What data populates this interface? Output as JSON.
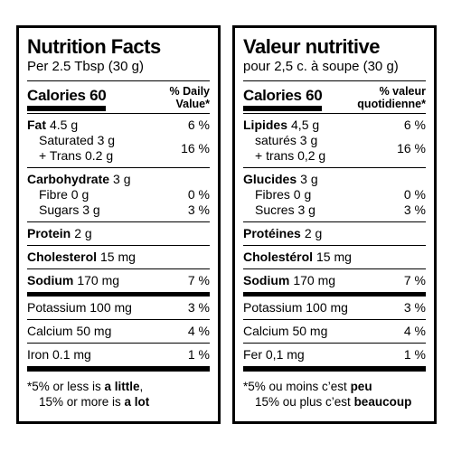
{
  "panels": [
    {
      "title": "Nutrition Facts",
      "serving": "Per 2.5 Tbsp (30 g)",
      "calories": "Calories 60",
      "dv_heading": [
        "% Daily",
        "Value*"
      ],
      "groups": [
        {
          "rows": [
            {
              "name": "Fat",
              "amount": "4.5 g",
              "dv": "6 %"
            },
            {
              "lines": [
                "Saturated 3 g",
                "+ Trans 0.2 g"
              ],
              "dv": "16 %"
            }
          ]
        },
        {
          "rows": [
            {
              "name": "Carbohydrate",
              "amount": "3 g"
            },
            {
              "lines": [
                "Fibre 0 g"
              ],
              "dv": "0 %"
            },
            {
              "lines": [
                "Sugars 3 g"
              ],
              "dv": "3 %"
            }
          ]
        },
        {
          "rows": [
            {
              "name": "Protein",
              "amount": "2 g"
            }
          ]
        },
        {
          "rows": [
            {
              "name": "Cholesterol",
              "amount": "15 mg"
            }
          ]
        },
        {
          "rows": [
            {
              "name": "Sodium",
              "amount": "170 mg",
              "dv": "7 %"
            }
          ]
        },
        {
          "rows": [
            {
              "text": "Potassium 100 mg",
              "dv": "3 %"
            }
          ]
        },
        {
          "rows": [
            {
              "text": "Calcium 50 mg",
              "dv": "4 %"
            }
          ]
        },
        {
          "rows": [
            {
              "text": "Iron 0.1 mg",
              "dv": "1 %"
            }
          ]
        }
      ],
      "footnote": [
        [
          {
            "text": "*5% or less is "
          },
          {
            "text": "a little",
            "bold": true
          },
          {
            "text": ","
          }
        ],
        [
          {
            "text": "15% or more is "
          },
          {
            "text": "a lot",
            "bold": true
          }
        ]
      ]
    },
    {
      "title": "Valeur nutritive",
      "serving": "pour 2,5 c. à soupe (30 g)",
      "calories": "Calories 60",
      "dv_heading": [
        "% valeur",
        "quotidienne*"
      ],
      "groups": [
        {
          "rows": [
            {
              "name": "Lipides",
              "amount": "4,5 g",
              "dv": "6 %"
            },
            {
              "lines": [
                "saturés 3 g",
                "+ trans 0,2 g"
              ],
              "dv": "16 %"
            }
          ]
        },
        {
          "rows": [
            {
              "name": "Glucides",
              "amount": "3 g"
            },
            {
              "lines": [
                "Fibres 0 g"
              ],
              "dv": "0 %"
            },
            {
              "lines": [
                "Sucres 3 g"
              ],
              "dv": "3 %"
            }
          ]
        },
        {
          "rows": [
            {
              "name": "Protéines",
              "amount": "2 g"
            }
          ]
        },
        {
          "rows": [
            {
              "name": "Cholestérol",
              "amount": "15 mg"
            }
          ]
        },
        {
          "rows": [
            {
              "name": "Sodium",
              "amount": "170 mg",
              "dv": "7 %"
            }
          ]
        },
        {
          "rows": [
            {
              "text": "Potassium 100 mg",
              "dv": "3 %"
            }
          ]
        },
        {
          "rows": [
            {
              "text": "Calcium 50 mg",
              "dv": "4 %"
            }
          ]
        },
        {
          "rows": [
            {
              "text": "Fer 0,1 mg",
              "dv": "1 %"
            }
          ]
        }
      ],
      "footnote": [
        [
          {
            "text": "*5% ou moins c’est "
          },
          {
            "text": "peu",
            "bold": true
          }
        ],
        [
          {
            "text": "15% ou plus c’est "
          },
          {
            "text": "beaucoup",
            "bold": true
          }
        ]
      ]
    }
  ]
}
